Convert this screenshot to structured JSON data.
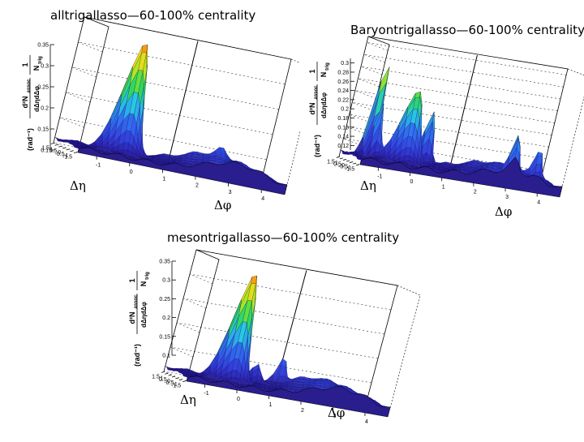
{
  "chart_data": [
    {
      "type": "surface3d",
      "title": "alltrigallasso—60-100% centrality",
      "xlabel": "Δφ",
      "ylabel": "Δη",
      "zlabel_numerator": "d²N",
      "zlabel_numerator_sub": "assoc",
      "zlabel_denominator": "dΔηdΔφ",
      "zlabel_prefactor_den": "N",
      "zlabel_prefactor_sub": "trig",
      "zlabel_unit": "(rad⁻¹)",
      "xticks": [
        "-1",
        "0",
        "1",
        "2",
        "3",
        "4"
      ],
      "yticks": [
        "1.5",
        "1",
        "0.5",
        "0",
        "-0.5",
        "-1",
        "-1.5"
      ],
      "zticks": [
        "0.1",
        "0.15",
        "0.2",
        "0.25",
        "0.3",
        "0.35"
      ],
      "xlim": [
        -1.57,
        4.71
      ],
      "ylim": [
        -1.6,
        1.6
      ],
      "zlim": [
        0.1,
        0.35
      ],
      "baseline": 0.11,
      "ridge": {
        "amp": 0.03,
        "width": 0.9
      },
      "peaks": [
        {
          "x": 0,
          "y": 0,
          "amp": 0.22,
          "sx": 0.3,
          "sy": 0.3
        },
        {
          "x": 3.14,
          "y": 0.8,
          "amp": 0.02,
          "sx": 0.15,
          "sy": 0.2
        }
      ]
    },
    {
      "type": "surface3d",
      "title": "Baryontrigallasso—60-100% centrality",
      "xlabel": "Δφ",
      "ylabel": "Δη",
      "zlabel_numerator": "d²N",
      "zlabel_numerator_sub": "assoc",
      "zlabel_denominator": "dΔηdΔφ",
      "zlabel_prefactor_den": "N",
      "zlabel_prefactor_sub": "trig",
      "zlabel_unit": "(rad⁻¹)",
      "xticks": [
        "-1",
        "0",
        "1",
        "2",
        "3",
        "4"
      ],
      "yticks": [
        "1.5",
        "1",
        "0.5",
        "0",
        "-0.5",
        "-1",
        "-1.5"
      ],
      "zticks": [
        "0.12",
        "0.14",
        "0.16",
        "0.18",
        "0.2",
        "0.22",
        "0.24",
        "0.26",
        "0.28",
        "0.3"
      ],
      "xlim": [
        -1.57,
        4.71
      ],
      "ylim": [
        -1.6,
        1.6
      ],
      "zlim": [
        0.11,
        0.31
      ],
      "baseline": 0.12,
      "ridge": {
        "amp": 0.02,
        "width": 0.9
      },
      "peaks": [
        {
          "x": 0,
          "y": 0,
          "amp": 0.12,
          "sx": 0.3,
          "sy": 0.3
        },
        {
          "x": -0.8,
          "y": 1.4,
          "amp": 0.16,
          "sx": 0.12,
          "sy": 0.2
        },
        {
          "x": -0.9,
          "y": 0.3,
          "amp": 0.09,
          "sx": 0.12,
          "sy": 0.2
        },
        {
          "x": 0.9,
          "y": 1.2,
          "amp": 0.09,
          "sx": 0.15,
          "sy": 0.2
        },
        {
          "x": 3.1,
          "y": -1.3,
          "amp": 0.06,
          "sx": 0.12,
          "sy": 0.2
        },
        {
          "x": 4.1,
          "y": -0.2,
          "amp": 0.05,
          "sx": 0.12,
          "sy": 0.2
        }
      ]
    },
    {
      "type": "surface3d",
      "title": "mesontrigallasso—60-100% centrality",
      "xlabel": "Δφ",
      "ylabel": "Δη",
      "zlabel_numerator": "d²N",
      "zlabel_numerator_sub": "assoc",
      "zlabel_denominator": "dΔηdΔφ",
      "zlabel_prefactor_den": "N",
      "zlabel_prefactor_sub": "trig",
      "zlabel_unit": "(rad⁻¹)",
      "xticks": [
        "-1",
        "0",
        "1",
        "2",
        "3",
        "4"
      ],
      "yticks": [
        "1.5",
        "1",
        "0.5",
        "0",
        "-0.5",
        "-1",
        "-1.5"
      ],
      "zticks": [
        "0.1",
        "0.15",
        "0.2",
        "0.25",
        "0.3",
        "0.35"
      ],
      "xlim": [
        -1.57,
        4.71
      ],
      "ylim": [
        -1.6,
        1.6
      ],
      "zlim": [
        0.1,
        0.35
      ],
      "baseline": 0.11,
      "ridge": {
        "amp": 0.03,
        "width": 0.9
      },
      "peaks": [
        {
          "x": 0,
          "y": 0,
          "amp": 0.22,
          "sx": 0.28,
          "sy": 0.3
        },
        {
          "x": 1.0,
          "y": 0.9,
          "amp": 0.04,
          "sx": 0.15,
          "sy": 0.2
        },
        {
          "x": 1.9,
          "y": 1.5,
          "amp": 0.05,
          "sx": 0.12,
          "sy": 0.15
        }
      ]
    }
  ]
}
